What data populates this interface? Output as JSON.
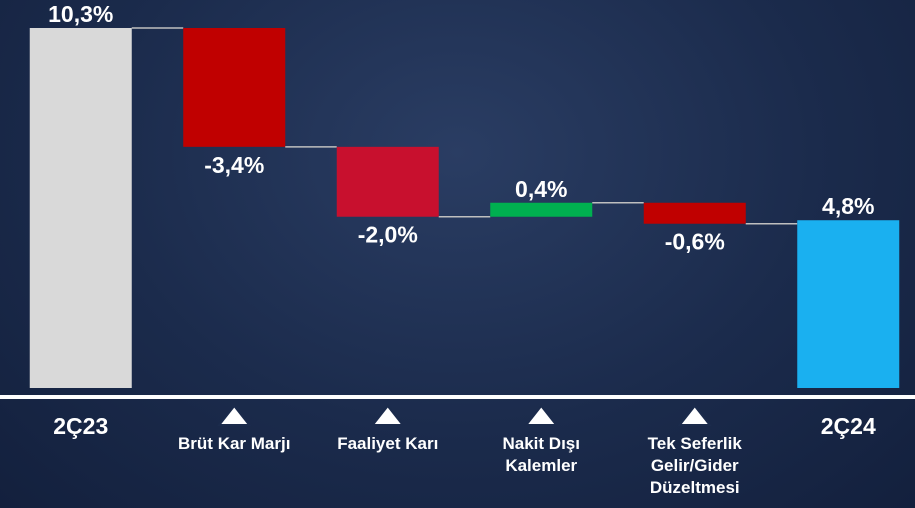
{
  "chart_data": {
    "type": "waterfall",
    "categories": [
      "2Ç23",
      "Brüt Kar Marjı",
      "Faaliyet Karı",
      "Nakit Dışı Kalemler",
      "Tek Seferlik Gelir/Gider Düzeltmesi",
      "2Ç24"
    ],
    "measure": [
      "absolute",
      "relative",
      "relative",
      "relative",
      "relative",
      "total"
    ],
    "values": [
      10.3,
      -3.4,
      -2.0,
      0.4,
      -0.6,
      4.8
    ],
    "value_labels": [
      "10,3%",
      "-3,4%",
      "-2,0%",
      "0,4%",
      "-0,6%",
      "4,8%"
    ],
    "colors": [
      "#d9d9d9",
      "#c00000",
      "#c8102e",
      "#00b050",
      "#c00000",
      "#1ab0f0"
    ]
  }
}
